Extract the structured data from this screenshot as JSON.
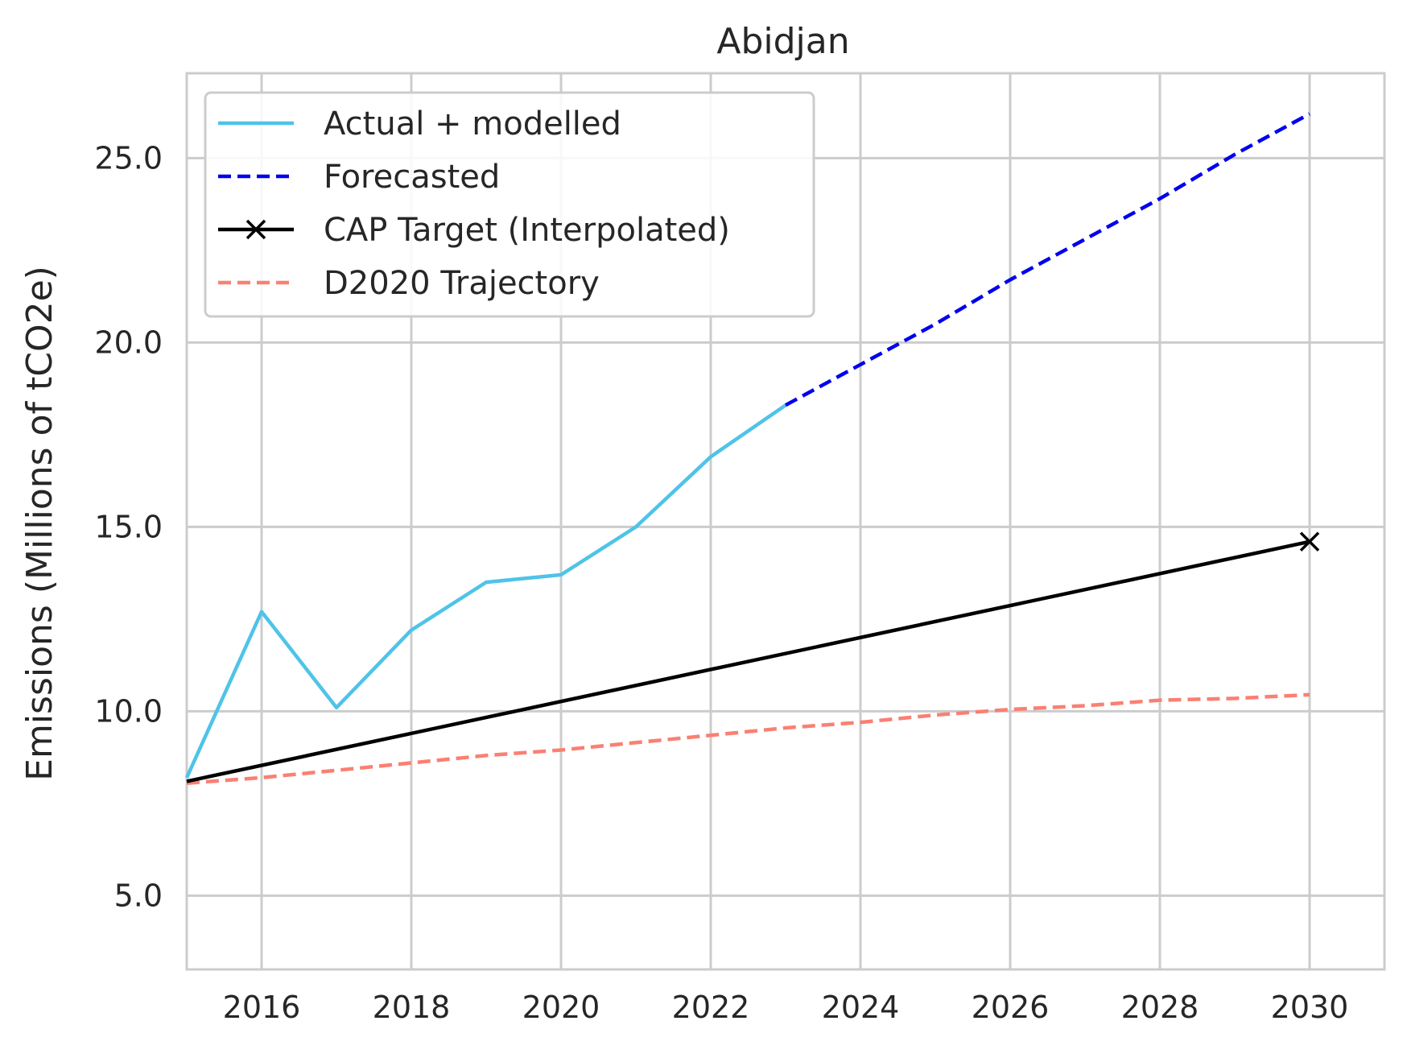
{
  "chart_data": {
    "type": "line",
    "title": "Abidjan",
    "xlabel": "",
    "ylabel": "Emissions (Millions of tCO2e)",
    "xlim": [
      2015,
      2031
    ],
    "ylim": [
      3,
      27.3
    ],
    "xticks": [
      2016,
      2018,
      2020,
      2022,
      2024,
      2026,
      2028,
      2030
    ],
    "xtick_labels": [
      "2016",
      "2018",
      "2020",
      "2022",
      "2024",
      "2026",
      "2028",
      "2030"
    ],
    "yticks": [
      5,
      10,
      15,
      20,
      25
    ],
    "ytick_labels": [
      "5.0",
      "10.0",
      "15.0",
      "20.0",
      "25.0"
    ],
    "grid": true,
    "legend_position": "top-left",
    "series": [
      {
        "name": "Actual + modelled",
        "color": "#4fc3e8",
        "style": "solid",
        "x": [
          2015,
          2016,
          2017,
          2018,
          2019,
          2020,
          2021,
          2022,
          2023
        ],
        "y": [
          8.2,
          12.7,
          10.1,
          12.2,
          13.5,
          13.7,
          15.0,
          16.9,
          18.3
        ]
      },
      {
        "name": "Forecasted",
        "color": "#0000ee",
        "style": "dashed",
        "x": [
          2023,
          2024,
          2025,
          2026,
          2027,
          2028,
          2029,
          2030
        ],
        "y": [
          18.3,
          19.4,
          20.5,
          21.7,
          22.8,
          23.9,
          25.1,
          26.2
        ]
      },
      {
        "name": "CAP Target (Interpolated)",
        "color": "#000000",
        "style": "solid",
        "marker": "x",
        "x": [
          2015,
          2030
        ],
        "y": [
          8.1,
          14.6
        ]
      },
      {
        "name": "D2020 Trajectory",
        "color": "#fa8072",
        "style": "dashed",
        "x": [
          2015,
          2016,
          2017,
          2018,
          2019,
          2020,
          2021,
          2022,
          2023,
          2024,
          2025,
          2026,
          2027,
          2028,
          2029,
          2030
        ],
        "y": [
          8.05,
          8.2,
          8.4,
          8.6,
          8.8,
          8.95,
          9.15,
          9.35,
          9.55,
          9.7,
          9.9,
          10.05,
          10.15,
          10.3,
          10.35,
          10.45
        ]
      }
    ]
  }
}
